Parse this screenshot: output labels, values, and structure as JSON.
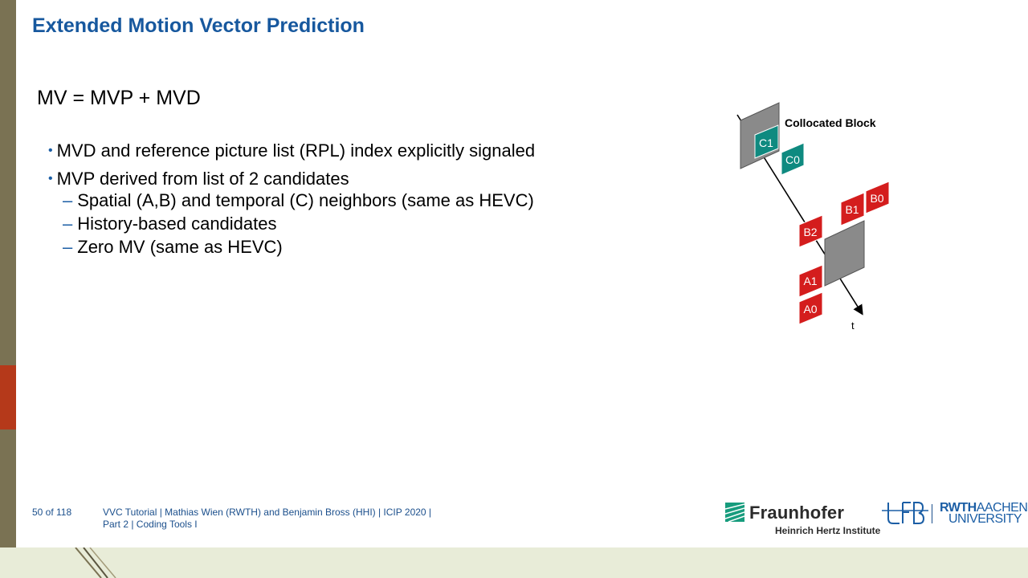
{
  "slide": {
    "title": "Extended Motion Vector Prediction",
    "equation": "MV = MVP + MVD",
    "bullets": [
      "MVD and reference picture list (RPL) index explicitly signaled",
      "MVP derived from list of 2 candidates"
    ],
    "sub_bullets": [
      "Spatial (A,B) and temporal (C) neighbors (same as HEVC)",
      "History-based candidates",
      "Zero MV (same as HEVC)"
    ]
  },
  "diagram": {
    "collocated_label": "Collocated Block",
    "blocks": {
      "c1": "C1",
      "c0": "C0",
      "b0": "B0",
      "b1": "B1",
      "b2": "B2",
      "a1": "A1",
      "a0": "A0"
    },
    "time_label": "t",
    "colors": {
      "temporal": "#0f8a80",
      "spatial": "#d41d1d",
      "picture": "#8a8a8a"
    }
  },
  "footer": {
    "page": "50 of 118",
    "line1": "VVC Tutorial  |  Mathias Wien (RWTH) and Benjamin Bross (HHI)  |  ICIP 2020  |",
    "line2": "Part 2  |  Coding Tools I"
  },
  "logos": {
    "fraunhofer_name": "Fraunhofer",
    "fraunhofer_sub": "Heinrich Hertz Institute",
    "rwth_line1_bold": "RWTH",
    "rwth_line1_light": "AACHEN",
    "rwth_line2": "UNIVERSITY"
  },
  "colors": {
    "accent": "#17589e",
    "sidebar": "#7a7253",
    "sidebar_accent": "#b5391a"
  }
}
